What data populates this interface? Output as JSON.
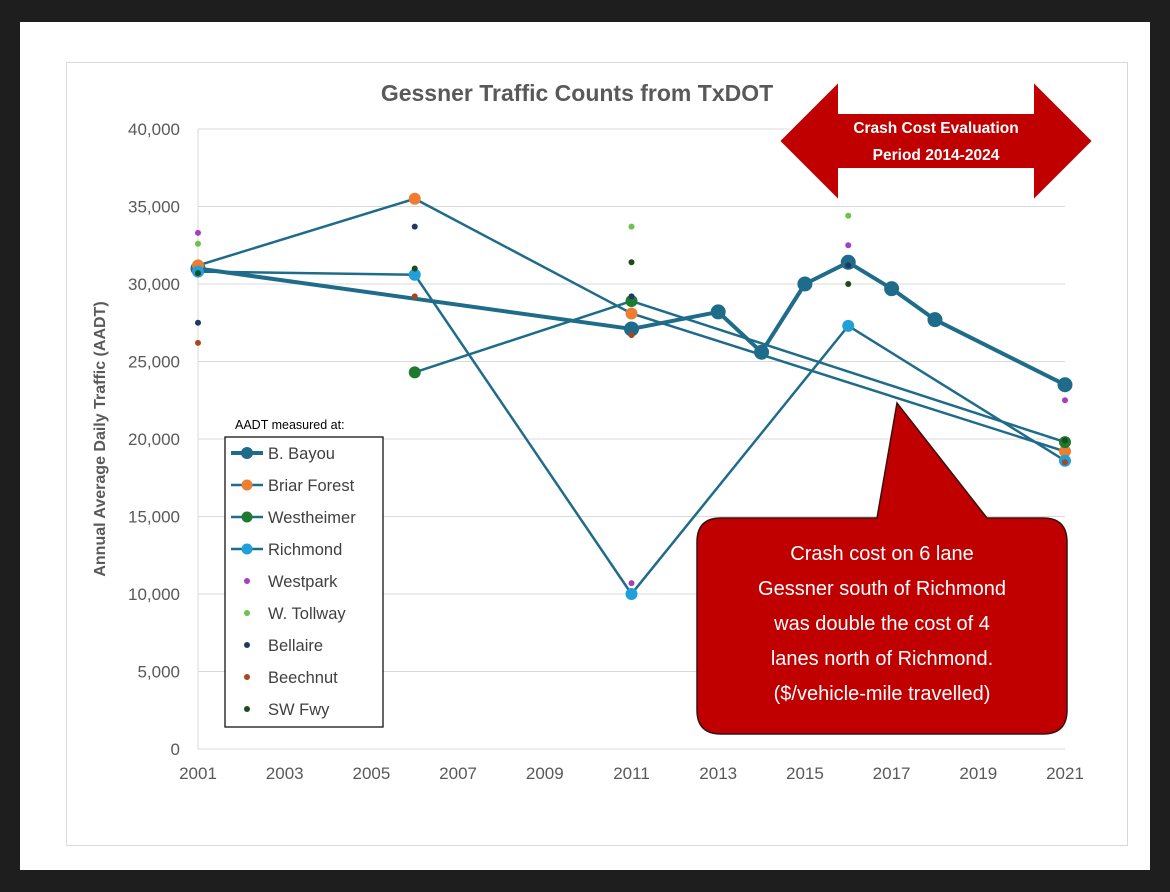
{
  "chart_data": {
    "type": "line",
    "title": "Gessner Traffic Counts from TxDOT",
    "ylabel": "Annual Average Daily Traffic (AADT)",
    "xlabel": "",
    "xlim": [
      2001,
      2021
    ],
    "ylim": [
      0,
      40000
    ],
    "x_ticks": [
      "2001",
      "2003",
      "2005",
      "2007",
      "2009",
      "2011",
      "2013",
      "2015",
      "2017",
      "2019",
      "2021"
    ],
    "y_ticks": [
      "0",
      "5,000",
      "10,000",
      "15,000",
      "20,000",
      "25,000",
      "30,000",
      "35,000",
      "40,000"
    ],
    "grid": "horizontal",
    "legend_title": "AADT measured at:",
    "legend_position": "lower-left",
    "series": [
      {
        "name": "B. Bayou",
        "style": "line-marker",
        "color": "#1f6b8a",
        "x": [
          2001,
          2011,
          2013,
          2014,
          2015,
          2016,
          2017,
          2018,
          2021
        ],
        "y": [
          31000,
          27100,
          28200,
          25600,
          30000,
          31400,
          29700,
          27700,
          23500
        ]
      },
      {
        "name": "Briar Forest",
        "style": "line-marker",
        "color": "#ed7d31",
        "x": [
          2001,
          2006,
          2011,
          2021
        ],
        "y": [
          31200,
          35500,
          28100,
          19200
        ]
      },
      {
        "name": "Westheimer",
        "style": "line-marker",
        "color": "#1e7a2e",
        "x": [
          2006,
          2011,
          2021
        ],
        "y": [
          24300,
          28900,
          19800
        ]
      },
      {
        "name": "Richmond",
        "style": "line-marker",
        "color": "#1fa0d8",
        "x": [
          2001,
          2006,
          2011,
          2016,
          2021
        ],
        "y": [
          30800,
          30600,
          10000,
          27300,
          18600
        ]
      },
      {
        "name": "Westpark",
        "style": "marker",
        "color": "#a63ec1",
        "x": [
          2001,
          2011,
          2016,
          2021
        ],
        "y": [
          33300,
          10700,
          32500,
          22500
        ]
      },
      {
        "name": "W. Tollway",
        "style": "marker",
        "color": "#6cc24a",
        "x": [
          2001,
          2011,
          2016
        ],
        "y": [
          32600,
          33700,
          34400
        ]
      },
      {
        "name": "Bellaire",
        "style": "marker",
        "color": "#203864",
        "x": [
          2001,
          2006,
          2011,
          2016
        ],
        "y": [
          27500,
          33700,
          29200,
          31200
        ]
      },
      {
        "name": "Beechnut",
        "style": "marker",
        "color": "#a5481e",
        "x": [
          2001,
          2006,
          2011,
          2021
        ],
        "y": [
          26200,
          29200,
          26700,
          18500
        ]
      },
      {
        "name": "SW Fwy",
        "style": "marker",
        "color": "#1c4c1c",
        "x": [
          2001,
          2006,
          2011,
          2016,
          2021
        ],
        "y": [
          30700,
          31000,
          31400,
          30000,
          19900
        ]
      }
    ],
    "annotations": {
      "arrow_label": [
        "Crash Cost Evaluation",
        "Period 2014-2024"
      ],
      "callout_lines": [
        "Crash cost on 6 lane",
        "Gessner south of Richmond",
        "was double the cost of 4",
        "lanes north of Richmond.",
        "($/vehicle-mile travelled)"
      ],
      "callout_color": "#c00000"
    }
  }
}
